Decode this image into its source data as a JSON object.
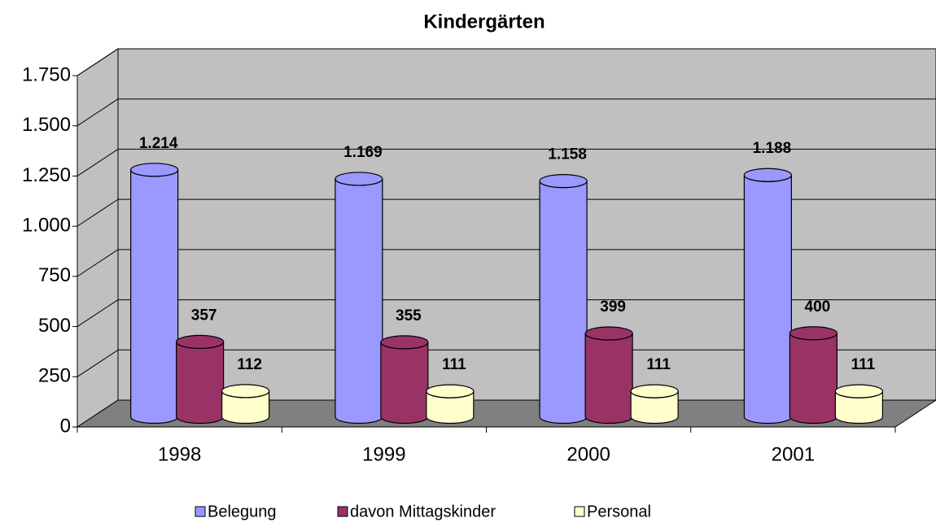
{
  "chart_data": {
    "type": "bar3d",
    "title": "Kindergärten",
    "categories": [
      "1998",
      "1999",
      "2000",
      "2001"
    ],
    "series": [
      {
        "name": "Belegung",
        "color": "#9999ff",
        "values": [
          1214,
          1169,
          1158,
          1188
        ],
        "value_labels": [
          "1.214",
          "1.169",
          "1.158",
          "1.188"
        ]
      },
      {
        "name": "davon Mittagskinder",
        "color": "#993366",
        "values": [
          357,
          355,
          399,
          400
        ]
      },
      {
        "name": "Personal",
        "color": "#ffffcc",
        "values": [
          112,
          111,
          111,
          111
        ]
      }
    ],
    "ylim": [
      0,
      1750
    ],
    "yticks": [
      0,
      250,
      500,
      750,
      {
        "value": 1000,
        "label": "1.000"
      },
      {
        "value": 1250,
        "label": "1.250"
      },
      {
        "value": 1500,
        "label": "1.500"
      },
      {
        "value": 1750,
        "label": "1.750"
      }
    ],
    "grid": true,
    "legend": "bottom"
  }
}
